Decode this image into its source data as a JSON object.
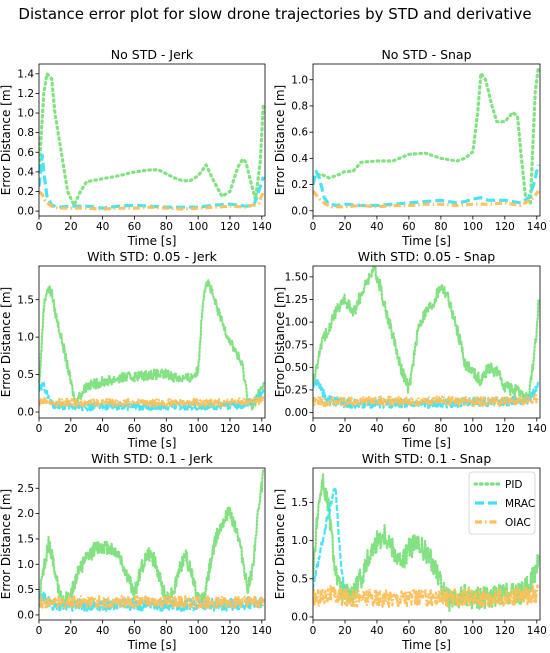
{
  "figure": {
    "title": "Distance error plot for slow drone trajectories by STD and derivative"
  },
  "legend": {
    "placement": "top-right",
    "panel": 5,
    "entries": [
      {
        "name": "PID",
        "color": "#7be07b",
        "style": "dotted"
      },
      {
        "name": "MRAC",
        "color": "#3fe3f3",
        "style": "dashed"
      },
      {
        "name": "OIAC",
        "color": "#ffbf57",
        "style": "dashdot"
      }
    ]
  },
  "chart_data": [
    {
      "type": "line",
      "title": "No STD - Jerk",
      "xlabel": "Time [s]",
      "ylabel": "Error Distance [m]",
      "xlim": [
        0,
        142
      ],
      "ylim": [
        -0.05,
        1.5
      ],
      "xticks": [
        0,
        20,
        40,
        60,
        80,
        100,
        120,
        140
      ],
      "yticks": [
        0.0,
        0.2,
        0.4,
        0.6,
        0.8,
        1.0,
        1.2,
        1.4
      ],
      "ytick_labels": [
        "0.0",
        "0.2",
        "0.4",
        "0.6",
        "0.8",
        "1.0",
        "1.2",
        "1.4"
      ],
      "noise": [
        0,
        0,
        0
      ],
      "series": [
        {
          "name": "PID",
          "x": [
            0,
            3,
            5,
            8,
            10,
            14,
            18,
            22,
            26,
            30,
            40,
            50,
            60,
            70,
            75,
            80,
            85,
            90,
            95,
            100,
            105,
            110,
            115,
            120,
            125,
            128,
            130,
            133,
            136,
            139,
            141
          ],
          "y": [
            0.4,
            1.2,
            1.4,
            1.35,
            1.0,
            0.6,
            0.2,
            0.06,
            0.2,
            0.3,
            0.33,
            0.36,
            0.4,
            0.42,
            0.42,
            0.38,
            0.34,
            0.31,
            0.31,
            0.36,
            0.47,
            0.3,
            0.15,
            0.2,
            0.45,
            0.53,
            0.5,
            0.3,
            0.12,
            0.5,
            1.1
          ]
        },
        {
          "name": "MRAC",
          "x": [
            0,
            2,
            3,
            5,
            8,
            12,
            20,
            30,
            40,
            50,
            60,
            70,
            80,
            90,
            100,
            110,
            120,
            130,
            135,
            138,
            141
          ],
          "y": [
            0.25,
            0.57,
            0.4,
            0.15,
            0.06,
            0.04,
            0.05,
            0.05,
            0.03,
            0.05,
            0.06,
            0.05,
            0.04,
            0.04,
            0.04,
            0.06,
            0.07,
            0.05,
            0.06,
            0.2,
            0.35
          ]
        },
        {
          "name": "OIAC",
          "x": [
            0,
            2,
            4,
            8,
            12,
            20,
            30,
            40,
            50,
            60,
            70,
            80,
            90,
            100,
            110,
            120,
            130,
            138,
            141
          ],
          "y": [
            0.2,
            0.17,
            0.1,
            0.05,
            0.03,
            0.03,
            0.03,
            0.02,
            0.03,
            0.03,
            0.04,
            0.03,
            0.02,
            0.03,
            0.04,
            0.05,
            0.04,
            0.08,
            0.2
          ]
        }
      ]
    },
    {
      "type": "line",
      "title": "No STD - Snap",
      "xlabel": "Time [s]",
      "ylabel": "Error Distance [m]",
      "xlim": [
        0,
        142
      ],
      "ylim": [
        -0.04,
        1.12
      ],
      "xticks": [
        0,
        20,
        40,
        60,
        80,
        100,
        120,
        140
      ],
      "yticks": [
        0.0,
        0.2,
        0.4,
        0.6,
        0.8,
        1.0
      ],
      "ytick_labels": [
        "0.0",
        "0.2",
        "0.4",
        "0.6",
        "0.8",
        "1.0"
      ],
      "noise": [
        0,
        0,
        0
      ],
      "series": [
        {
          "name": "PID",
          "x": [
            0,
            5,
            10,
            15,
            20,
            25,
            30,
            40,
            50,
            60,
            70,
            80,
            90,
            95,
            100,
            103,
            105,
            108,
            112,
            115,
            120,
            125,
            128,
            130,
            133,
            136,
            139,
            141
          ],
          "y": [
            0.25,
            0.28,
            0.25,
            0.27,
            0.3,
            0.3,
            0.37,
            0.38,
            0.38,
            0.43,
            0.44,
            0.4,
            0.38,
            0.4,
            0.45,
            0.75,
            1.05,
            1.0,
            0.8,
            0.68,
            0.68,
            0.75,
            0.72,
            0.45,
            0.1,
            0.06,
            0.9,
            1.1
          ]
        },
        {
          "name": "MRAC",
          "x": [
            0,
            2,
            4,
            7,
            10,
            15,
            20,
            30,
            40,
            50,
            60,
            70,
            80,
            90,
            95,
            100,
            105,
            110,
            120,
            130,
            135,
            138,
            141
          ],
          "y": [
            0.2,
            0.3,
            0.25,
            0.1,
            0.05,
            0.04,
            0.05,
            0.04,
            0.04,
            0.05,
            0.06,
            0.07,
            0.08,
            0.06,
            0.07,
            0.09,
            0.1,
            0.08,
            0.08,
            0.06,
            0.1,
            0.2,
            0.35
          ]
        },
        {
          "name": "OIAC",
          "x": [
            0,
            2,
            5,
            8,
            12,
            20,
            30,
            40,
            50,
            60,
            70,
            80,
            90,
            100,
            110,
            120,
            130,
            138,
            141
          ],
          "y": [
            0.15,
            0.12,
            0.08,
            0.05,
            0.03,
            0.03,
            0.04,
            0.03,
            0.04,
            0.04,
            0.05,
            0.05,
            0.04,
            0.05,
            0.05,
            0.06,
            0.04,
            0.1,
            0.15
          ]
        }
      ]
    },
    {
      "type": "line",
      "title": "With STD: 0.05 - Jerk",
      "xlabel": "Time [s]",
      "ylabel": "Error Distance [m]",
      "xlim": [
        0,
        142
      ],
      "ylim": [
        -0.08,
        1.95
      ],
      "xticks": [
        0,
        20,
        40,
        60,
        80,
        100,
        120,
        140
      ],
      "yticks": [
        0.0,
        0.5,
        1.0,
        1.5
      ],
      "ytick_labels": [
        "0.0",
        "0.5",
        "1.0",
        "1.5"
      ],
      "noise": [
        0.07,
        0.05,
        0.05
      ],
      "series": [
        {
          "name": "PID",
          "x": [
            0,
            3,
            5,
            8,
            10,
            15,
            20,
            23,
            25,
            30,
            40,
            50,
            60,
            70,
            80,
            90,
            95,
            100,
            103,
            105,
            107,
            110,
            115,
            120,
            125,
            128,
            131,
            134,
            137,
            141
          ],
          "y": [
            0.3,
            1.4,
            1.65,
            1.6,
            1.35,
            0.9,
            0.4,
            0.1,
            0.2,
            0.35,
            0.4,
            0.45,
            0.48,
            0.5,
            0.5,
            0.45,
            0.45,
            0.55,
            1.5,
            1.75,
            1.7,
            1.5,
            1.2,
            0.95,
            0.75,
            0.6,
            0.2,
            0.05,
            0.2,
            0.35
          ]
        },
        {
          "name": "MRAC",
          "x": [
            0,
            3,
            8,
            15,
            30,
            50,
            70,
            90,
            110,
            130,
            138,
            141
          ],
          "y": [
            0.3,
            0.35,
            0.1,
            0.08,
            0.07,
            0.08,
            0.07,
            0.08,
            0.08,
            0.1,
            0.2,
            0.3
          ]
        },
        {
          "name": "OIAC",
          "x": [
            0,
            3,
            8,
            15,
            30,
            50,
            70,
            90,
            110,
            130,
            141
          ],
          "y": [
            0.12,
            0.15,
            0.12,
            0.13,
            0.12,
            0.13,
            0.12,
            0.13,
            0.12,
            0.14,
            0.15
          ]
        }
      ]
    },
    {
      "type": "line",
      "title": "With STD: 0.05 - Snap",
      "xlabel": "Time [s]",
      "ylabel": "Error Distance [m]",
      "xlim": [
        0,
        142
      ],
      "ylim": [
        -0.06,
        1.62
      ],
      "xticks": [
        0,
        20,
        40,
        60,
        80,
        100,
        120,
        140
      ],
      "yticks": [
        0.0,
        0.25,
        0.5,
        0.75,
        1.0,
        1.25,
        1.5
      ],
      "ytick_labels": [
        "0.00",
        "0.25",
        "0.50",
        "0.75",
        "1.00",
        "1.25",
        "1.50"
      ],
      "noise": [
        0.07,
        0.05,
        0.05
      ],
      "series": [
        {
          "name": "PID",
          "x": [
            0,
            5,
            10,
            15,
            20,
            25,
            30,
            35,
            38,
            42,
            46,
            50,
            55,
            60,
            63,
            66,
            70,
            75,
            80,
            84,
            88,
            92,
            95,
            100,
            105,
            110,
            115,
            120,
            125,
            130,
            135,
            140,
            141
          ],
          "y": [
            0.3,
            0.75,
            0.95,
            1.15,
            1.25,
            1.1,
            1.3,
            1.5,
            1.6,
            1.4,
            1.1,
            0.85,
            0.5,
            0.25,
            0.6,
            0.95,
            1.1,
            1.2,
            1.4,
            1.3,
            1.05,
            0.8,
            0.55,
            0.45,
            0.35,
            0.5,
            0.45,
            0.3,
            0.25,
            0.2,
            0.15,
            0.9,
            1.2
          ]
        },
        {
          "name": "MRAC",
          "x": [
            0,
            3,
            8,
            20,
            40,
            60,
            80,
            100,
            120,
            135,
            141
          ],
          "y": [
            0.3,
            0.35,
            0.15,
            0.1,
            0.1,
            0.1,
            0.1,
            0.12,
            0.12,
            0.15,
            0.3
          ]
        },
        {
          "name": "OIAC",
          "x": [
            0,
            5,
            20,
            40,
            60,
            80,
            100,
            120,
            141
          ],
          "y": [
            0.13,
            0.12,
            0.12,
            0.13,
            0.12,
            0.13,
            0.12,
            0.12,
            0.15
          ]
        }
      ]
    },
    {
      "type": "line",
      "title": "With STD: 0.1 - Jerk",
      "xlabel": "Time [s]",
      "ylabel": "Error Distance [m]",
      "xlim": [
        0,
        142
      ],
      "ylim": [
        -0.1,
        2.9
      ],
      "xticks": [
        0,
        20,
        40,
        60,
        80,
        100,
        120,
        140
      ],
      "yticks": [
        0.0,
        0.5,
        1.0,
        1.5,
        2.0,
        2.5
      ],
      "ytick_labels": [
        "0.0",
        "0.5",
        "1.0",
        "1.5",
        "2.0",
        "2.5"
      ],
      "noise": [
        0.15,
        0.12,
        0.12
      ],
      "series": [
        {
          "name": "PID",
          "x": [
            0,
            3,
            6,
            9,
            12,
            16,
            20,
            25,
            30,
            35,
            40,
            45,
            50,
            55,
            60,
            64,
            68,
            72,
            76,
            80,
            85,
            88,
            92,
            96,
            100,
            104,
            108,
            112,
            116,
            120,
            124,
            128,
            131,
            134,
            137,
            141
          ],
          "y": [
            0.3,
            0.9,
            1.4,
            1.1,
            0.5,
            0.3,
            0.4,
            0.9,
            1.1,
            1.3,
            1.35,
            1.3,
            1.2,
            0.8,
            0.4,
            0.9,
            1.2,
            1.1,
            0.7,
            0.3,
            0.5,
            0.9,
            1.2,
            0.8,
            0.3,
            0.35,
            1.1,
            1.6,
            1.9,
            2.0,
            1.7,
            1.1,
            0.5,
            0.9,
            1.8,
            2.8
          ]
        },
        {
          "name": "MRAC",
          "x": [
            0,
            3,
            8,
            20,
            40,
            60,
            80,
            100,
            120,
            141
          ],
          "y": [
            0.25,
            0.35,
            0.2,
            0.2,
            0.2,
            0.2,
            0.2,
            0.2,
            0.2,
            0.25
          ]
        },
        {
          "name": "OIAC",
          "x": [
            0,
            5,
            20,
            40,
            60,
            80,
            100,
            120,
            141
          ],
          "y": [
            0.25,
            0.25,
            0.25,
            0.25,
            0.25,
            0.25,
            0.25,
            0.25,
            0.25
          ]
        }
      ]
    },
    {
      "type": "line",
      "title": "With STD: 0.1 - Snap",
      "xlabel": "Time [s]",
      "ylabel": "Error Distance [m]",
      "xlim": [
        0,
        142
      ],
      "ylim": [
        -0.04,
        1.95
      ],
      "xticks": [
        0,
        20,
        40,
        60,
        80,
        100,
        120,
        140
      ],
      "yticks": [
        0.0,
        0.5,
        1.0,
        1.5
      ],
      "ytick_labels": [
        "0.0",
        "0.5",
        "1.0",
        "1.5"
      ],
      "noise": [
        0.15,
        0.05,
        0.12
      ],
      "series": [
        {
          "name": "PID",
          "x": [
            0,
            3,
            6,
            8,
            10,
            13,
            16,
            20,
            25,
            30,
            35,
            40,
            45,
            50,
            55,
            60,
            65,
            70,
            75,
            78,
            82,
            86,
            90,
            95,
            100,
            110,
            120,
            130,
            135,
            138,
            141
          ],
          "y": [
            0.5,
            1.4,
            1.8,
            1.6,
            1.4,
            0.8,
            0.4,
            0.3,
            0.3,
            0.5,
            0.8,
            1.0,
            1.1,
            0.9,
            0.7,
            0.9,
            0.95,
            0.85,
            0.7,
            0.6,
            0.3,
            0.2,
            0.2,
            0.3,
            0.25,
            0.25,
            0.3,
            0.3,
            0.4,
            0.55,
            0.7
          ]
        },
        {
          "name": "MRAC",
          "x": [
            0,
            3,
            6,
            9,
            12,
            14,
            16,
            18,
            20
          ],
          "y": [
            0.4,
            0.7,
            1.0,
            1.3,
            1.55,
            1.7,
            1.1,
            0.6,
            0.3
          ]
        },
        {
          "name": "OIAC",
          "x": [
            0,
            5,
            10,
            20,
            40,
            60,
            80,
            100,
            120,
            141
          ],
          "y": [
            0.25,
            0.25,
            0.3,
            0.25,
            0.25,
            0.25,
            0.25,
            0.25,
            0.25,
            0.3
          ]
        }
      ]
    }
  ]
}
